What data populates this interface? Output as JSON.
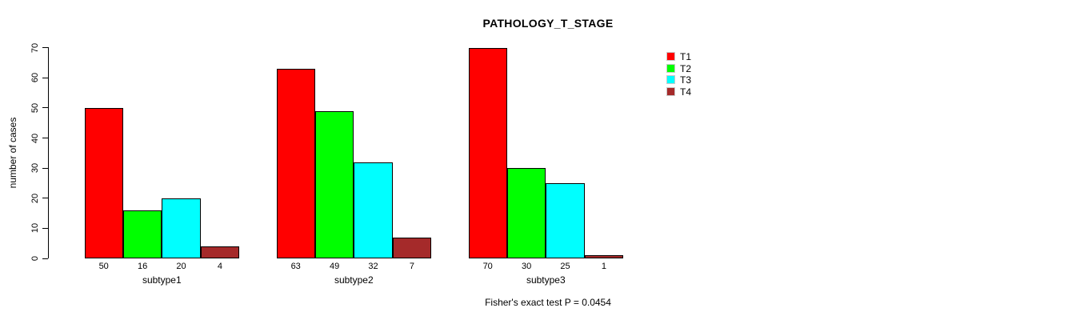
{
  "chart_data": {
    "type": "bar",
    "title": "PATHOLOGY_T_STAGE",
    "xlabel": "",
    "ylabel": "number of cases",
    "categories": [
      "subtype1",
      "subtype2",
      "subtype3"
    ],
    "series": [
      {
        "name": "T1",
        "color": "#ff0000",
        "values": [
          50,
          63,
          70
        ]
      },
      {
        "name": "T2",
        "color": "#00ff00",
        "values": [
          16,
          49,
          30
        ]
      },
      {
        "name": "T3",
        "color": "#00ffff",
        "values": [
          20,
          32,
          25
        ]
      },
      {
        "name": "T4",
        "color": "#a52a2a",
        "values": [
          4,
          7,
          1
        ]
      }
    ],
    "ylim": [
      0,
      70
    ],
    "yticks": [
      0,
      10,
      20,
      30,
      40,
      50,
      60,
      70
    ],
    "bar_value_labels_shown": true,
    "legend_entries": [
      "T1",
      "T2",
      "T3",
      "T4"
    ],
    "legend_position": "top-right",
    "grid": false,
    "caption": "Fisher's exact test P = 0.0454",
    "colors": {
      "axis": "#000000",
      "text": "#000000",
      "background": "#ffffff",
      "bar_border": "#000000",
      "legend_swatch_border": "#c9c9c9"
    }
  }
}
